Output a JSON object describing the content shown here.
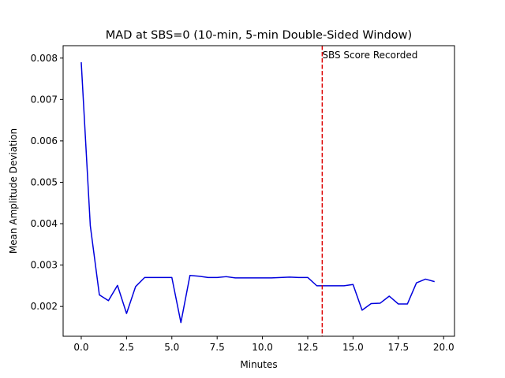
{
  "chart_data": {
    "type": "line",
    "title": "MAD at SBS=0 (10-min, 5-min Double-Sided Window)",
    "xlabel": "Minutes",
    "ylabel": "Mean Amplitude Deviation",
    "xlim": [
      -1.0,
      20.6
    ],
    "ylim": [
      0.00128,
      0.0083
    ],
    "xticks": [
      0.0,
      2.5,
      5.0,
      7.5,
      10.0,
      12.5,
      15.0,
      17.5,
      20.0
    ],
    "xtick_labels": [
      "0.0",
      "2.5",
      "5.0",
      "7.5",
      "10.0",
      "12.5",
      "15.0",
      "17.5",
      "20.0"
    ],
    "yticks": [
      0.002,
      0.003,
      0.004,
      0.005,
      0.006,
      0.007,
      0.008
    ],
    "ytick_labels": [
      "0.002",
      "0.003",
      "0.004",
      "0.005",
      "0.006",
      "0.007",
      "0.008"
    ],
    "grid": false,
    "legend": "none",
    "series": [
      {
        "color": "#0000dd",
        "x": [
          0.0,
          0.5,
          1.0,
          1.5,
          2.0,
          2.5,
          3.0,
          3.5,
          4.0,
          4.5,
          5.0,
          5.5,
          6.0,
          6.5,
          7.0,
          7.5,
          8.0,
          8.5,
          9.0,
          9.5,
          10.0,
          10.5,
          11.0,
          11.5,
          12.0,
          12.5,
          13.0,
          13.5,
          14.0,
          14.5,
          15.0,
          15.5,
          16.0,
          16.5,
          17.0,
          17.5,
          18.0,
          18.5,
          19.0,
          19.5
        ],
        "y": [
          0.0079,
          0.00395,
          0.00228,
          0.00214,
          0.00251,
          0.00183,
          0.00248,
          0.0027,
          0.0027,
          0.0027,
          0.0027,
          0.00161,
          0.00275,
          0.00273,
          0.0027,
          0.0027,
          0.00272,
          0.00269,
          0.00269,
          0.00269,
          0.00269,
          0.00269,
          0.0027,
          0.00271,
          0.0027,
          0.0027,
          0.0025,
          0.0025,
          0.0025,
          0.0025,
          0.00253,
          0.00191,
          0.00207,
          0.00208,
          0.00225,
          0.00206,
          0.00206,
          0.00257,
          0.00266,
          0.0026
        ]
      }
    ],
    "annotations": [
      {
        "type": "vline",
        "x": 13.3,
        "color": "#dd0000",
        "style": "dashed",
        "text": "SBS Score Recorded"
      }
    ]
  }
}
